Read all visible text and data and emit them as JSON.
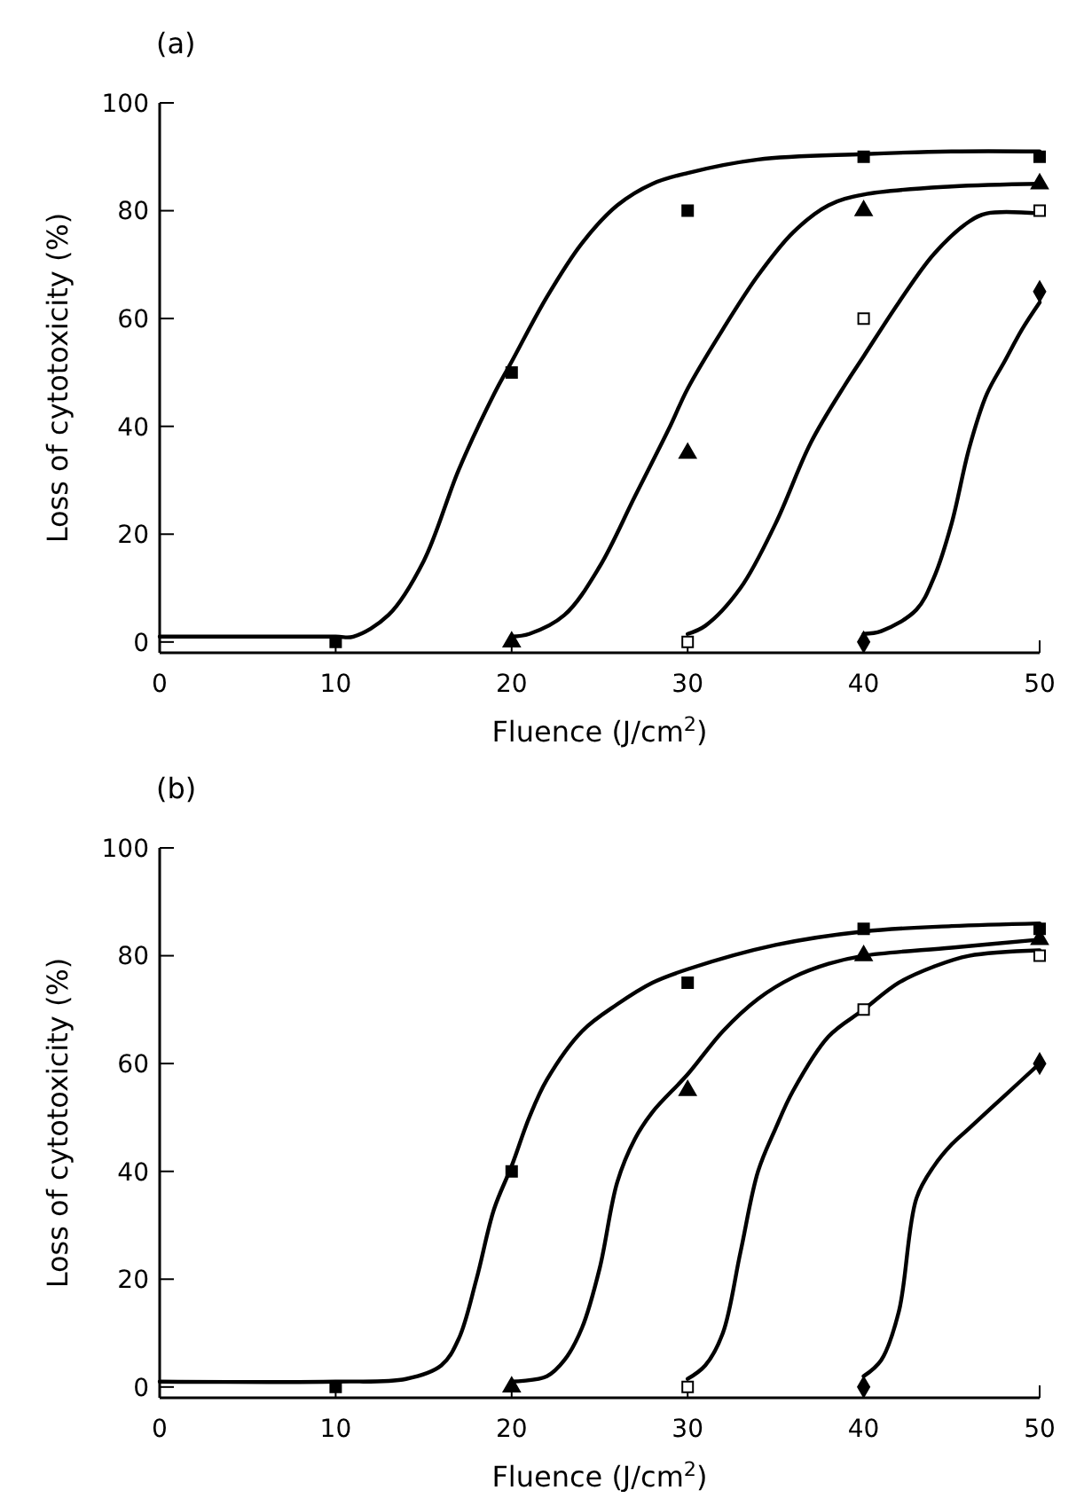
{
  "chart_data": [
    {
      "type": "scatter",
      "title": "(a)",
      "xlabel": "Fluence (J/cm$^{2}$)",
      "ylabel": "Loss of cytotoxicity (%)",
      "xlim": [
        0,
        50
      ],
      "ylim": [
        -2,
        100
      ],
      "xticks": [
        0,
        10,
        20,
        30,
        40,
        50
      ],
      "yticks": [
        0,
        20,
        40,
        60,
        80,
        100
      ],
      "grid": false,
      "series": [
        {
          "type": "line",
          "marker": "none",
          "line_style": "solid",
          "color": "#000000",
          "x": [
            0,
            10,
            11,
            13,
            15,
            17,
            19,
            20,
            22,
            24,
            26,
            28,
            30,
            34,
            40,
            45,
            50
          ],
          "values": [
            1,
            1,
            1,
            5,
            15,
            32,
            46,
            52,
            64,
            74,
            81,
            85,
            87,
            89.5,
            90.5,
            91,
            91
          ]
        },
        {
          "type": "line",
          "marker": "none",
          "line_style": "solid",
          "color": "#000000",
          "x": [
            20,
            21,
            23,
            25,
            27,
            29,
            30,
            32,
            34,
            36,
            38,
            40,
            45,
            50
          ],
          "values": [
            1,
            1.5,
            5,
            14,
            27,
            40,
            47,
            58,
            68,
            76,
            81,
            83,
            84.5,
            85
          ]
        },
        {
          "type": "line",
          "marker": "none",
          "line_style": "solid",
          "color": "#000000",
          "x": [
            30,
            31,
            33,
            35,
            37,
            39,
            40,
            42,
            44,
            46,
            47,
            50
          ],
          "values": [
            1.5,
            3,
            10,
            22,
            37,
            48,
            53,
            63,
            72,
            78,
            79.5,
            79.5
          ]
        },
        {
          "type": "line",
          "marker": "none",
          "line_style": "solid",
          "color": "#000000",
          "x": [
            40,
            41,
            43,
            44,
            45,
            46,
            47,
            48,
            49,
            50
          ],
          "values": [
            1.5,
            2,
            6,
            12,
            22,
            36,
            46,
            52,
            58,
            63
          ]
        },
        {
          "marker": "square",
          "color": "#000000",
          "x": [
            10,
            20,
            30,
            40,
            50
          ],
          "values": [
            0,
            50,
            80,
            90,
            90
          ]
        },
        {
          "marker": "triangle",
          "color": "#000000",
          "x": [
            20,
            30,
            40,
            50
          ],
          "values": [
            0,
            35,
            80,
            85
          ]
        },
        {
          "marker": "square",
          "color": "#ffffff",
          "x": [
            30,
            40,
            50
          ],
          "values": [
            0,
            60,
            80
          ]
        },
        {
          "marker": "diamond",
          "color": "#000000",
          "x": [
            40,
            50
          ],
          "values": [
            0,
            65
          ]
        }
      ]
    },
    {
      "type": "scatter",
      "title": "(b)",
      "xlabel": "Fluence (J/cm$^{2}$)",
      "ylabel": "Loss of cytotoxicity (%)",
      "xlim": [
        0,
        50
      ],
      "ylim": [
        -2,
        100
      ],
      "xticks": [
        0,
        10,
        20,
        30,
        40,
        50
      ],
      "yticks": [
        0,
        20,
        40,
        60,
        80,
        100
      ],
      "grid": false,
      "series": [
        {
          "type": "line",
          "marker": "none",
          "line_style": "solid",
          "color": "#000000",
          "x": [
            0,
            10,
            14,
            16,
            17,
            18,
            19,
            20,
            21,
            22,
            24,
            26,
            28,
            30,
            35,
            40,
            45,
            50
          ],
          "values": [
            1,
            1,
            1.5,
            4,
            9,
            20,
            33,
            41,
            50,
            57,
            66,
            71,
            75,
            77.5,
            82,
            84.5,
            85.5,
            86
          ]
        },
        {
          "type": "line",
          "marker": "none",
          "line_style": "solid",
          "color": "#000000",
          "x": [
            20,
            22,
            23,
            24,
            25,
            26,
            27,
            28,
            30,
            32,
            34,
            36,
            38,
            40,
            45,
            50
          ],
          "values": [
            1,
            2,
            5,
            11,
            22,
            38,
            46,
            51,
            58,
            66,
            72,
            76,
            78.5,
            80,
            81.5,
            83
          ]
        },
        {
          "type": "line",
          "marker": "none",
          "line_style": "solid",
          "color": "#000000",
          "x": [
            30,
            31,
            32,
            33,
            34,
            35,
            36,
            38,
            40,
            42,
            44,
            46,
            50
          ],
          "values": [
            1.5,
            4,
            10,
            25,
            40,
            48,
            55,
            65,
            70,
            75,
            78,
            80,
            81
          ]
        },
        {
          "type": "line",
          "marker": "none",
          "line_style": "solid",
          "color": "#000000",
          "x": [
            40,
            41,
            42,
            43,
            44,
            45,
            46,
            48,
            50
          ],
          "values": [
            2,
            5,
            14,
            35,
            41,
            45,
            48,
            54,
            60
          ]
        },
        {
          "marker": "square",
          "color": "#000000",
          "x": [
            10,
            20,
            30,
            40,
            50
          ],
          "values": [
            0,
            40,
            75,
            85,
            85
          ]
        },
        {
          "marker": "triangle",
          "color": "#000000",
          "x": [
            20,
            30,
            40,
            50
          ],
          "values": [
            0,
            55,
            80,
            83
          ]
        },
        {
          "marker": "square",
          "color": "#ffffff",
          "x": [
            30,
            40,
            50
          ],
          "values": [
            0,
            70,
            80
          ]
        },
        {
          "marker": "diamond",
          "color": "#000000",
          "x": [
            40,
            50
          ],
          "values": [
            0,
            60
          ]
        }
      ]
    }
  ]
}
